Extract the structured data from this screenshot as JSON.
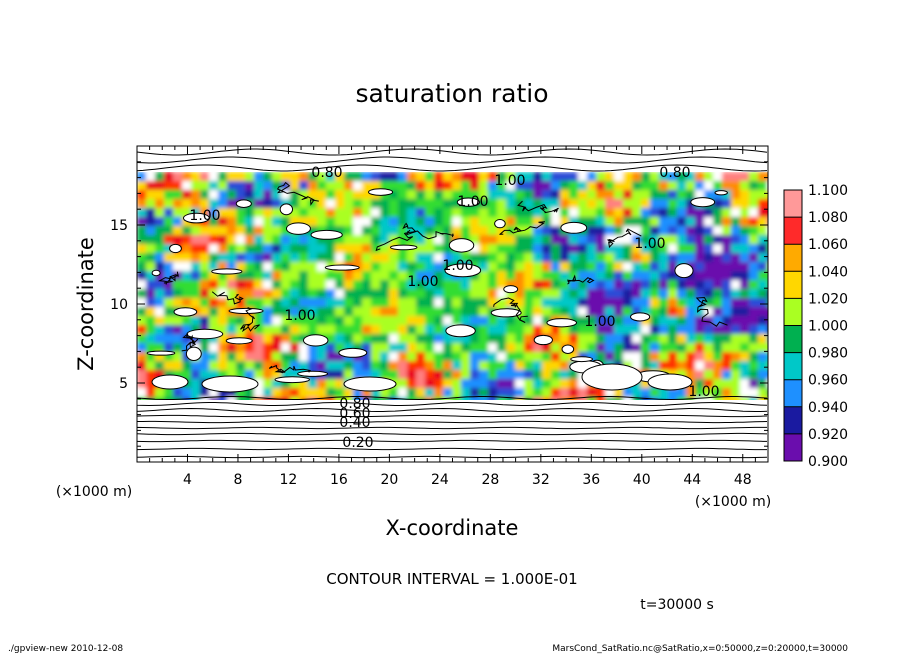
{
  "chart_data": {
    "type": "heatmap",
    "title": "saturation ratio",
    "xlabel": "X-coordinate",
    "ylabel": "Z-coordinate",
    "x_unit": "(×1000 m)",
    "y_unit": "(×1000 m)",
    "xlim": [
      0,
      50
    ],
    "ylim": [
      0,
      20
    ],
    "x_ticks": [
      4,
      8,
      12,
      16,
      20,
      24,
      28,
      32,
      36,
      40,
      44,
      48
    ],
    "y_ticks": [
      5,
      10,
      15
    ],
    "colorbar": {
      "min": 0.9,
      "max": 1.1,
      "levels": [
        "1.100",
        "1.080",
        "1.060",
        "1.040",
        "1.020",
        "1.000",
        "0.980",
        "0.960",
        "0.940",
        "0.920",
        "0.900"
      ],
      "colors": [
        "#ffffff",
        "#6a0dad",
        "#1a1aa0",
        "#2a4bd7",
        "#1e90ff",
        "#00c8c8",
        "#00c060",
        "#33dd33",
        "#aaff22",
        "#ffd700",
        "#ff8c00",
        "#ff3300",
        "#e8001c",
        "#ff8080",
        "#ffffff"
      ]
    },
    "contour_labels": [
      "0.80",
      "0.80",
      "1.00",
      "1.00",
      "1.00",
      "1.00",
      "1.00",
      "1.00",
      "1.00",
      "1.00",
      "1.00",
      "0.80",
      "0.60",
      "0.40",
      "0.20"
    ],
    "contour_interval_text": "CONTOUR INTERVAL = 1.000E-01",
    "time_text": "t=30000 s"
  },
  "footer": {
    "left": "./gpview-new  2010-12-08",
    "right": "MarsCond_SatRatio.nc@SatRatio,x=0:50000,z=0:20000,t=30000"
  }
}
